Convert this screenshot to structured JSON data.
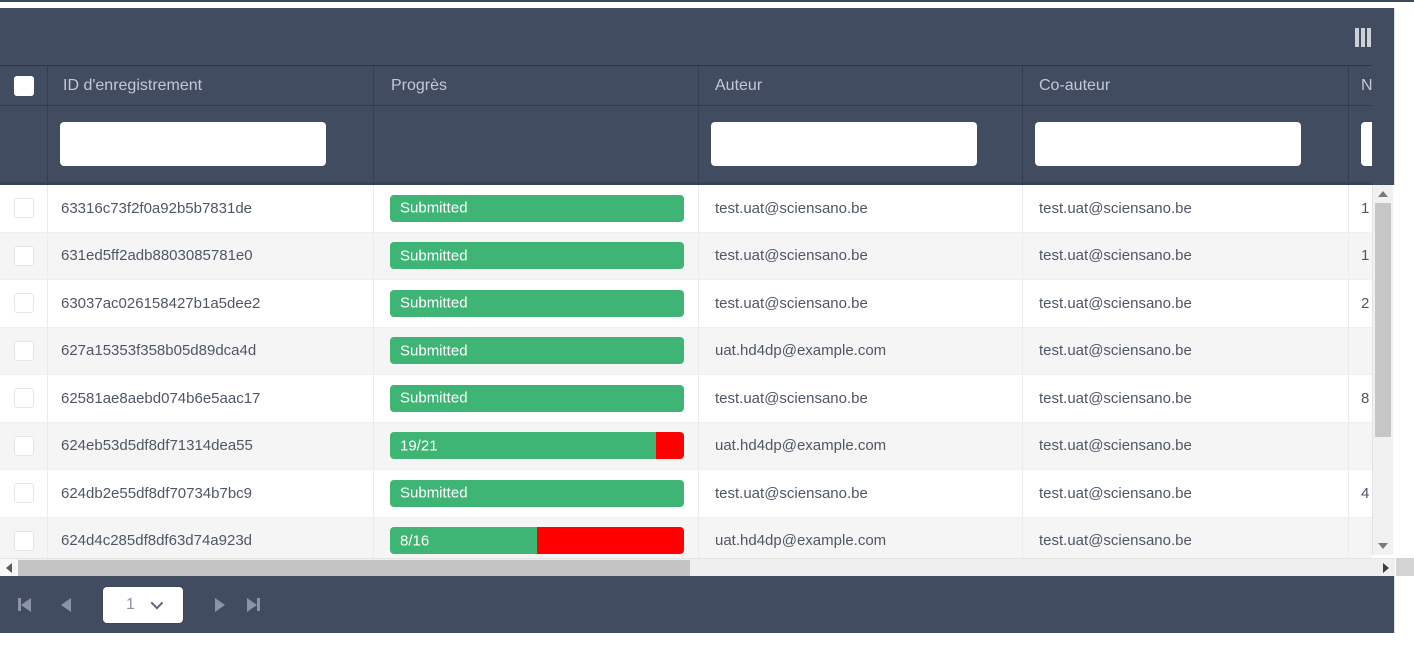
{
  "colors": {
    "header_bg": "#414c61",
    "progress_green": "#3eb575",
    "progress_red": "#ff0000",
    "row_alt_bg": "#f5f5f5",
    "header_text": "#c3c9d4",
    "cell_text": "#4e5766",
    "scrollbar_thumb": "#c6c6c6"
  },
  "toolbar": {
    "columns_menu_icon": "columns-icon"
  },
  "grid": {
    "columns": [
      {
        "field": "select",
        "label": "",
        "filterable": false
      },
      {
        "field": "record_id",
        "label": "ID d'enregistrement",
        "filterable": true
      },
      {
        "field": "progress",
        "label": "Progrès",
        "filterable": false
      },
      {
        "field": "author",
        "label": "Auteur",
        "filterable": true
      },
      {
        "field": "co_author",
        "label": "Co-auteur",
        "filterable": true
      },
      {
        "field": "n",
        "label": "N",
        "filterable": true
      }
    ],
    "filters": {
      "record_id": "",
      "author": "",
      "co_author": "",
      "n": ""
    },
    "rows": [
      {
        "record_id": "63316c73f2f0a92b5b7831de",
        "progress": {
          "label": "Submitted",
          "green_pct": 100,
          "red_pct": 0
        },
        "author": "test.uat@sciensano.be",
        "co_author": "test.uat@sciensano.be",
        "n": "1"
      },
      {
        "record_id": "631ed5ff2adb8803085781e0",
        "progress": {
          "label": "Submitted",
          "green_pct": 100,
          "red_pct": 0
        },
        "author": "test.uat@sciensano.be",
        "co_author": "test.uat@sciensano.be",
        "n": "1"
      },
      {
        "record_id": "63037ac026158427b1a5dee2",
        "progress": {
          "label": "Submitted",
          "green_pct": 100,
          "red_pct": 0
        },
        "author": "test.uat@sciensano.be",
        "co_author": "test.uat@sciensano.be",
        "n": "2"
      },
      {
        "record_id": "627a15353f358b05d89dca4d",
        "progress": {
          "label": "Submitted",
          "green_pct": 100,
          "red_pct": 0
        },
        "author": "uat.hd4dp@example.com",
        "co_author": "test.uat@sciensano.be",
        "n": ""
      },
      {
        "record_id": "62581ae8aebd074b6e5aac17",
        "progress": {
          "label": "Submitted",
          "green_pct": 100,
          "red_pct": 0
        },
        "author": "test.uat@sciensano.be",
        "co_author": "test.uat@sciensano.be",
        "n": "8"
      },
      {
        "record_id": "624eb53d5df8df71314dea55",
        "progress": {
          "label": "19/21",
          "green_pct": 90.5,
          "red_pct": 9.5
        },
        "author": "uat.hd4dp@example.com",
        "co_author": "test.uat@sciensano.be",
        "n": ""
      },
      {
        "record_id": "624db2e55df8df70734b7bc9",
        "progress": {
          "label": "Submitted",
          "green_pct": 100,
          "red_pct": 0
        },
        "author": "test.uat@sciensano.be",
        "co_author": "test.uat@sciensano.be",
        "n": "4"
      },
      {
        "record_id": "624d4c285df8df63d74a923d",
        "progress": {
          "label": "8/16",
          "green_pct": 50,
          "red_pct": 50
        },
        "author": "uat.hd4dp@example.com",
        "co_author": "test.uat@sciensano.be",
        "n": ""
      }
    ]
  },
  "pager": {
    "current_page": "1",
    "first_icon": "first-page-icon",
    "prev_icon": "prev-page-icon",
    "next_icon": "next-page-icon",
    "last_icon": "last-page-icon"
  }
}
